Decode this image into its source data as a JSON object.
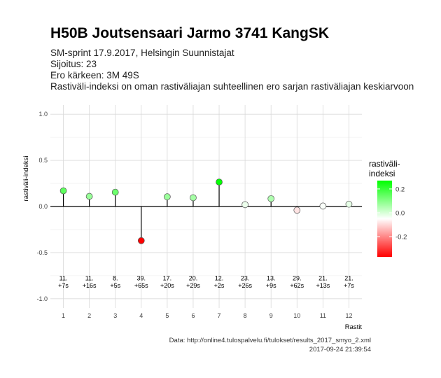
{
  "header": {
    "title": "H50B Joutsensaari Jarmo 3741 KangSK",
    "subtitle_lines": [
      "SM-sprint 17.9.2017, Helsingin Suunnistajat",
      "Sijoitus: 23",
      "Ero kärkeen: 3M 49S",
      "Rastiväli-indeksi on oman rastiväliajan suhteellinen ero sarjan rastiväliajan keskiarvoon"
    ]
  },
  "caption": {
    "source": "Data: http://online4.tulospalvelu.fi/tulokset/results_2017_smyo_2.xml",
    "timestamp": "2017-09-24 21:39:54"
  },
  "legend": {
    "title_line1": "rastiväli-",
    "title_line2": "indeksi",
    "labels": [
      "0.2",
      "0.0",
      "-0.2"
    ],
    "label_values": [
      0.2,
      0.0,
      -0.2
    ],
    "range": [
      -0.37,
      0.27
    ],
    "colors": {
      "low": "#ff0000",
      "mid": "#ffffff",
      "high": "#00ff00"
    }
  },
  "chart_data": {
    "type": "scatter",
    "xlabel": "Rastit",
    "ylabel": "rastiväli-indeksi",
    "ylim": [
      -1.0,
      1.0
    ],
    "xlim": [
      1,
      12
    ],
    "y_ticks": [
      "1.0",
      "0.5",
      "0.0",
      "-0.5",
      "-1.0"
    ],
    "y_tick_values": [
      1.0,
      0.5,
      0.0,
      -0.5,
      -1.0
    ],
    "x_ticks": [
      "1",
      "2",
      "3",
      "4",
      "5",
      "6",
      "7",
      "8",
      "9",
      "10",
      "11",
      "12"
    ],
    "x": [
      1,
      2,
      3,
      4,
      5,
      6,
      7,
      8,
      9,
      10,
      11,
      12
    ],
    "values": [
      0.17,
      0.11,
      0.155,
      -0.37,
      0.105,
      0.095,
      0.265,
      0.02,
      0.085,
      -0.04,
      0.005,
      0.025
    ],
    "rank_labels": [
      "11.",
      "11.",
      "8.",
      "39.",
      "17.",
      "20.",
      "12.",
      "23.",
      "13.",
      "29.",
      "21.",
      "21."
    ],
    "diff_labels": [
      "+7s",
      "+16s",
      "+5s",
      "+65s",
      "+20s",
      "+29s",
      "+2s",
      "+26s",
      "+9s",
      "+62s",
      "+13s",
      "+7s"
    ],
    "grid": true
  }
}
